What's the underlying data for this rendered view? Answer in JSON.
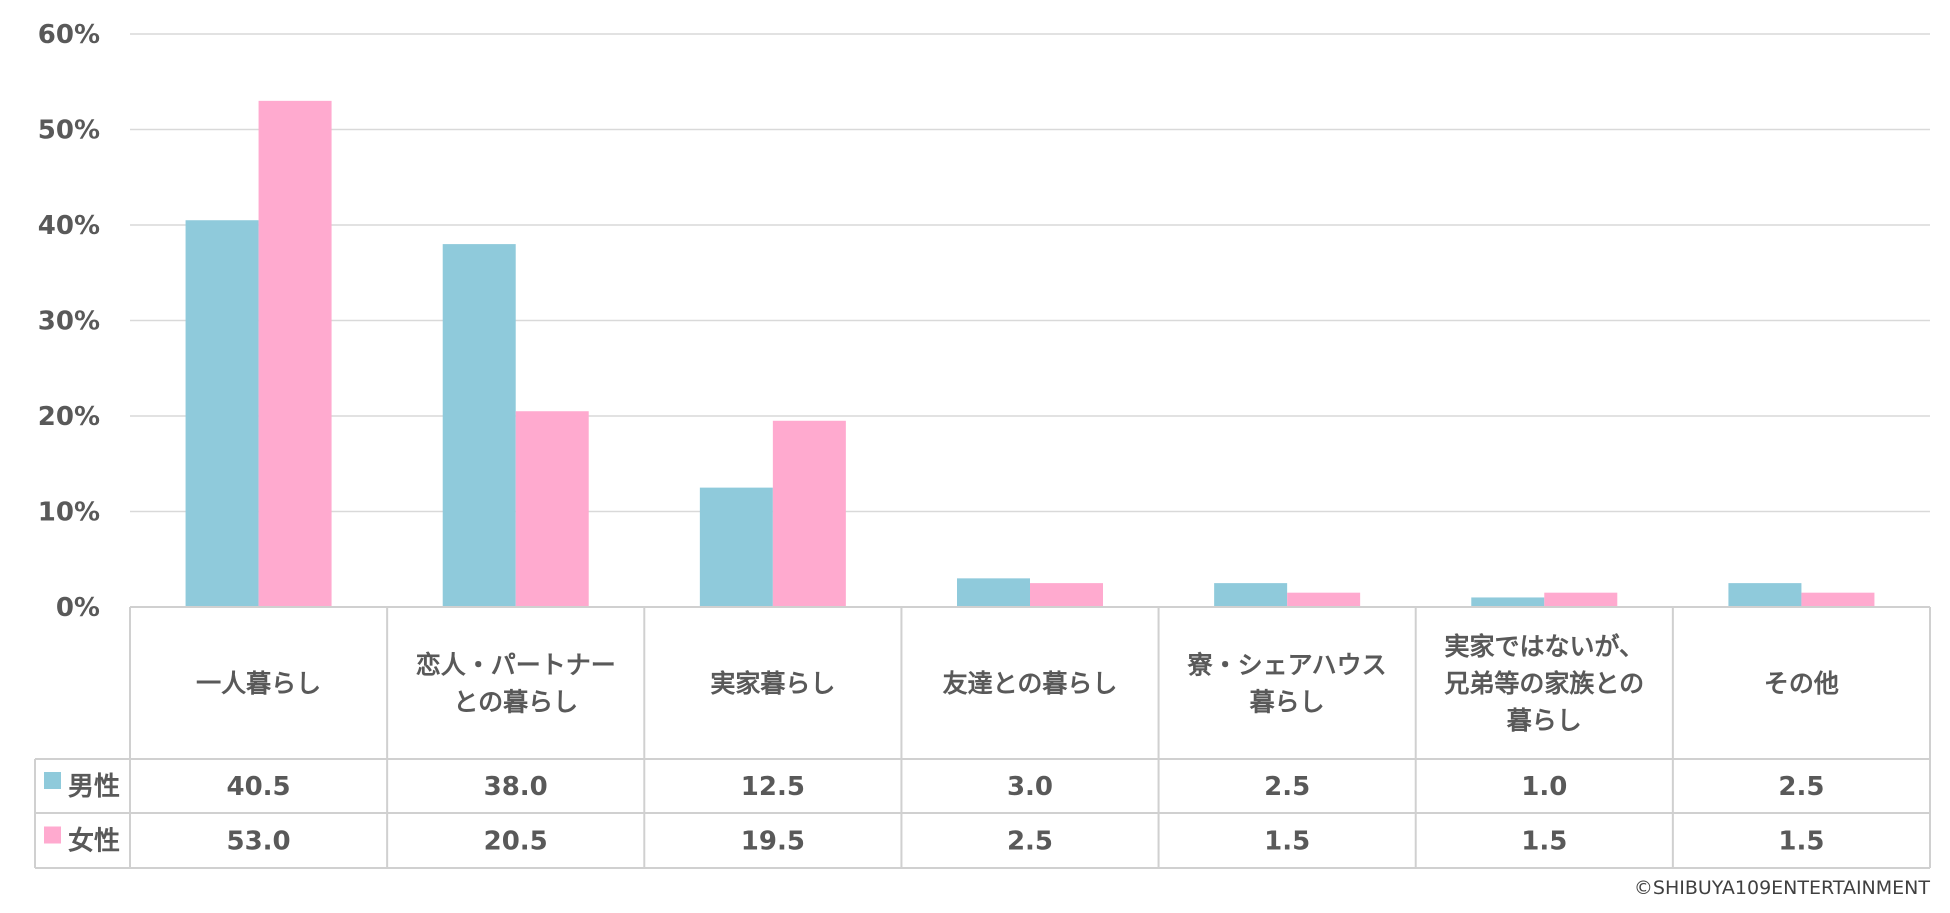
{
  "chart_data": {
    "type": "bar",
    "categories": [
      [
        "一人暮らし"
      ],
      [
        "恋人・パートナー",
        "との暮らし"
      ],
      [
        "実家暮らし"
      ],
      [
        "友達との暮らし"
      ],
      [
        "寮・シェアハウス",
        "暮らし"
      ],
      [
        "実家ではないが、",
        "兄弟等の家族との",
        "暮らし"
      ],
      [
        "その他"
      ]
    ],
    "series": [
      {
        "name": "男性",
        "values": [
          40.5,
          38.0,
          12.5,
          3.0,
          2.5,
          1.0,
          2.5
        ],
        "labels": [
          "40.5",
          "38.0",
          "12.5",
          "3.0",
          "2.5",
          "1.0",
          "2.5"
        ],
        "color": "#8fcadb"
      },
      {
        "name": "女性",
        "values": [
          53.0,
          20.5,
          19.5,
          2.5,
          1.5,
          1.5,
          1.5
        ],
        "labels": [
          "53.0",
          "20.5",
          "19.5",
          "2.5",
          "1.5",
          "1.5",
          "1.5"
        ],
        "color": "#ffaacf"
      }
    ],
    "yticks": [
      "0%",
      "10%",
      "20%",
      "30%",
      "40%",
      "50%",
      "60%"
    ],
    "ylim": [
      0,
      60
    ],
    "grid": true,
    "data_table": true
  },
  "copyright": "©SHIBUYA109ENTERTAINMENT"
}
